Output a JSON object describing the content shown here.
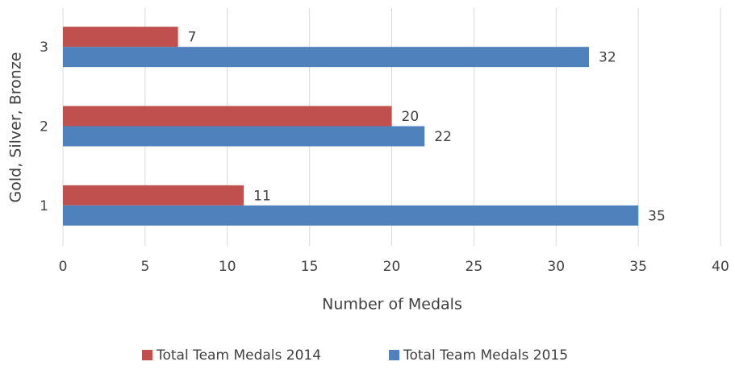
{
  "chart_data": {
    "type": "hbar",
    "xlabel": "Number of Medals",
    "ylabel": "Gold, Silver, Bronze",
    "categories": [
      "1",
      "2",
      "3"
    ],
    "series": [
      {
        "name": "Total Team Medals 2014",
        "color": "#c0504d",
        "values": [
          11,
          20,
          7
        ]
      },
      {
        "name": "Total Team Medals 2015",
        "color": "#4f81bd",
        "values": [
          35,
          22,
          32
        ]
      }
    ],
    "xlim": [
      0,
      40
    ],
    "xticks": [
      0,
      5,
      10,
      15,
      20,
      25,
      30,
      35,
      40
    ],
    "grid": true,
    "legend": "bottom"
  }
}
